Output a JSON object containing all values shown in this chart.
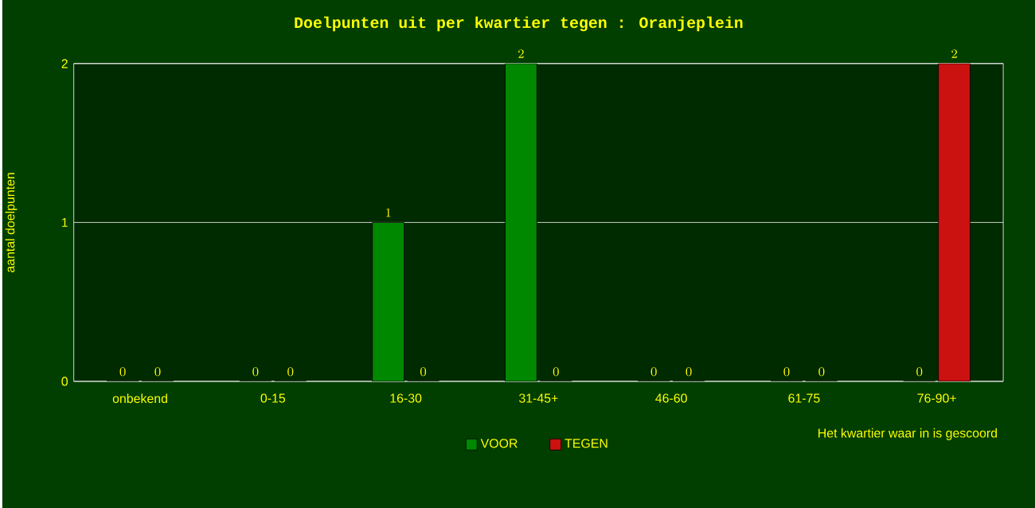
{
  "chart_data": {
    "type": "bar",
    "title": "Doelpunten uit per kwartier tegen : Oranjeplein",
    "xlabel": "Het kwartier waar in is gescoord",
    "ylabel": "aantal doelpunten",
    "categories": [
      "onbekend",
      "0-15",
      "16-30",
      "31-45+",
      "46-60",
      "61-75",
      "76-90+"
    ],
    "series": [
      {
        "name": "VOOR",
        "color": "#008800",
        "values": [
          0,
          0,
          1,
          2,
          0,
          0,
          0
        ]
      },
      {
        "name": "TEGEN",
        "color": "#cc1111",
        "values": [
          0,
          0,
          0,
          0,
          0,
          0,
          2
        ]
      }
    ],
    "ylim": [
      0,
      2
    ],
    "yticks": [
      0,
      1,
      2
    ],
    "grid": "y",
    "legend": "bottom",
    "data_labels": true
  }
}
